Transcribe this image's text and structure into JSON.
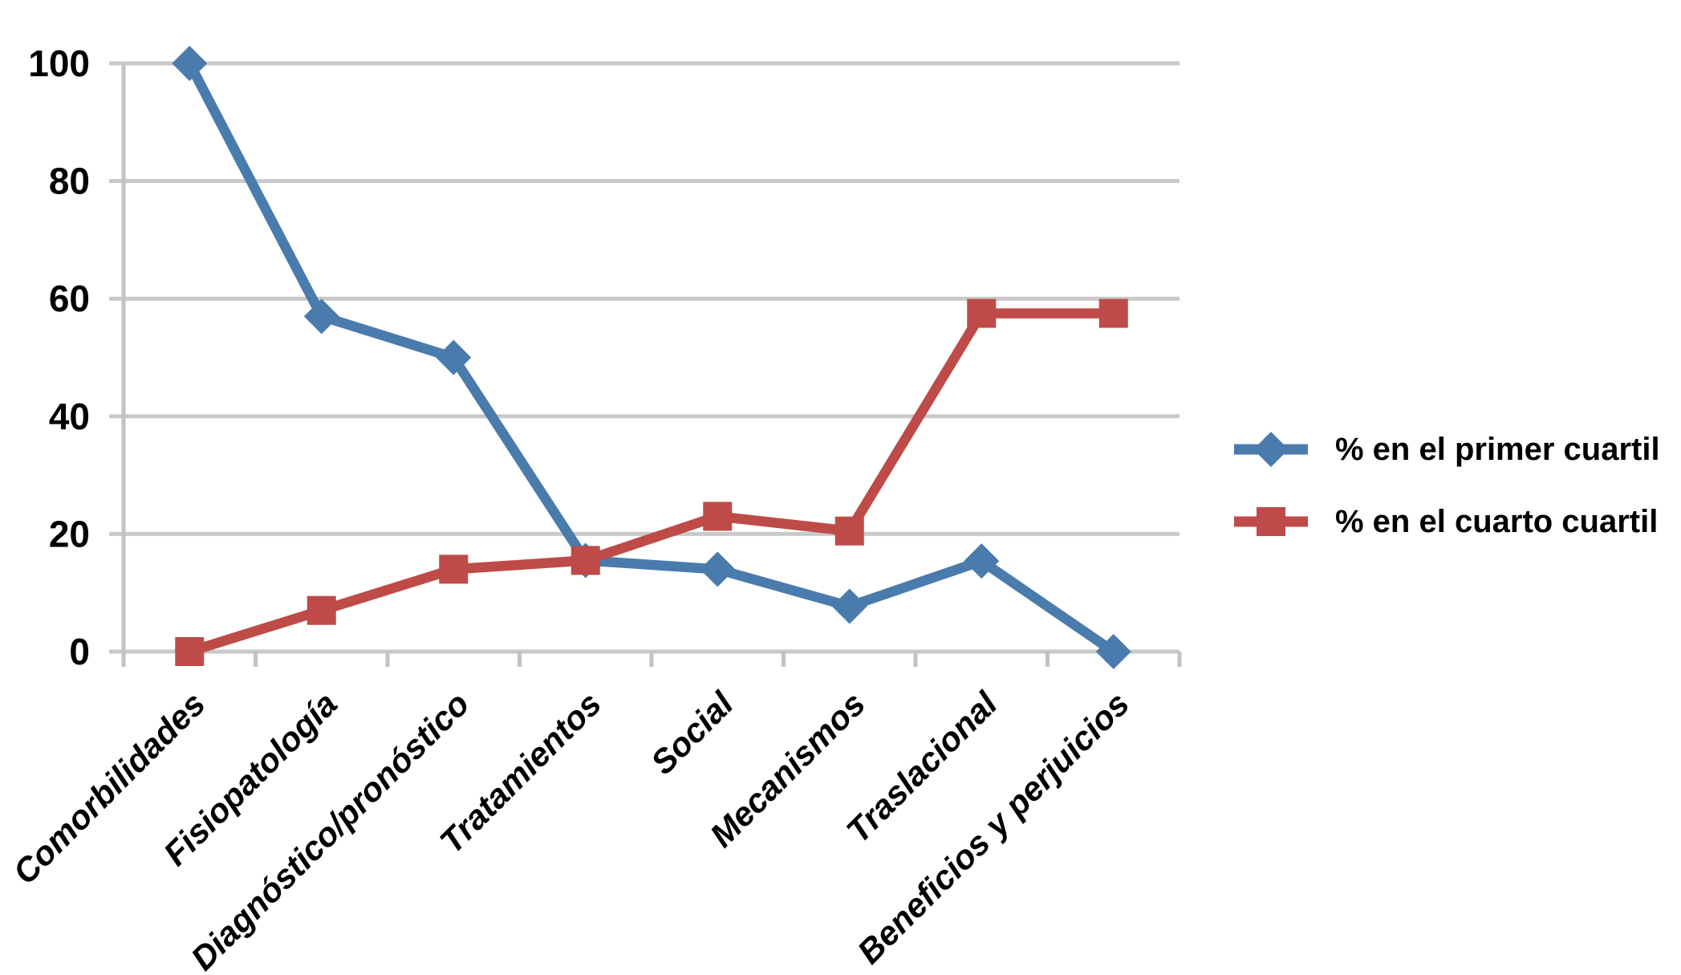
{
  "chart_data": {
    "type": "line",
    "title": "",
    "xlabel": "",
    "ylabel": "",
    "categories": [
      "Comorbilidades",
      "Fisiopatología",
      "Diagnóstico/pronóstico",
      "Tratamientos",
      "Social",
      "Mecanismos",
      "Traslacional",
      "Beneficios y perjuicios"
    ],
    "series": [
      {
        "name": "% en el primer cuartil",
        "marker": "diamond",
        "color": "#4A7BAD",
        "values": [
          100,
          57,
          50,
          15.5,
          14,
          7.7,
          15.4,
          0
        ]
      },
      {
        "name": "% en el cuarto cuartil",
        "marker": "square",
        "color": "#BE4B48",
        "values": [
          0,
          7,
          14,
          15.5,
          23,
          20.5,
          57.5,
          57.5
        ]
      }
    ],
    "y_axis": {
      "min": 0,
      "max": 100,
      "step": 20,
      "tick_labels": [
        "0",
        "20",
        "40",
        "60",
        "80",
        "100"
      ]
    },
    "grid": true,
    "legend_position": "right-middle"
  },
  "colors": {
    "background": "#FFFFFF",
    "gridline": "#C9C9C9",
    "axis": "#C2C2C2",
    "text": "#000000",
    "series_blue": "#4A7BAD",
    "series_red": "#BE4B48"
  }
}
